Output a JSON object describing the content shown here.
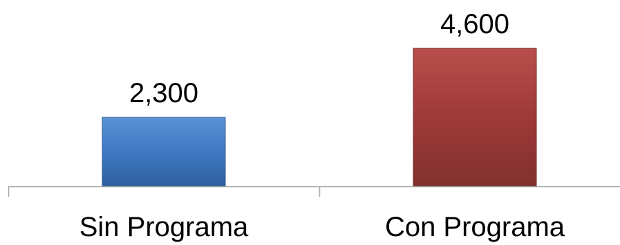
{
  "chart_data": {
    "type": "bar",
    "categories": [
      "Sin Programa",
      "Con Programa"
    ],
    "values": [
      2300,
      4600
    ],
    "value_labels": [
      "2,300",
      "4,600"
    ],
    "colors": [
      "#3f78c2",
      "#9e3a38"
    ],
    "ylim": [
      0,
      4600
    ],
    "grid": false,
    "legend": "none"
  }
}
